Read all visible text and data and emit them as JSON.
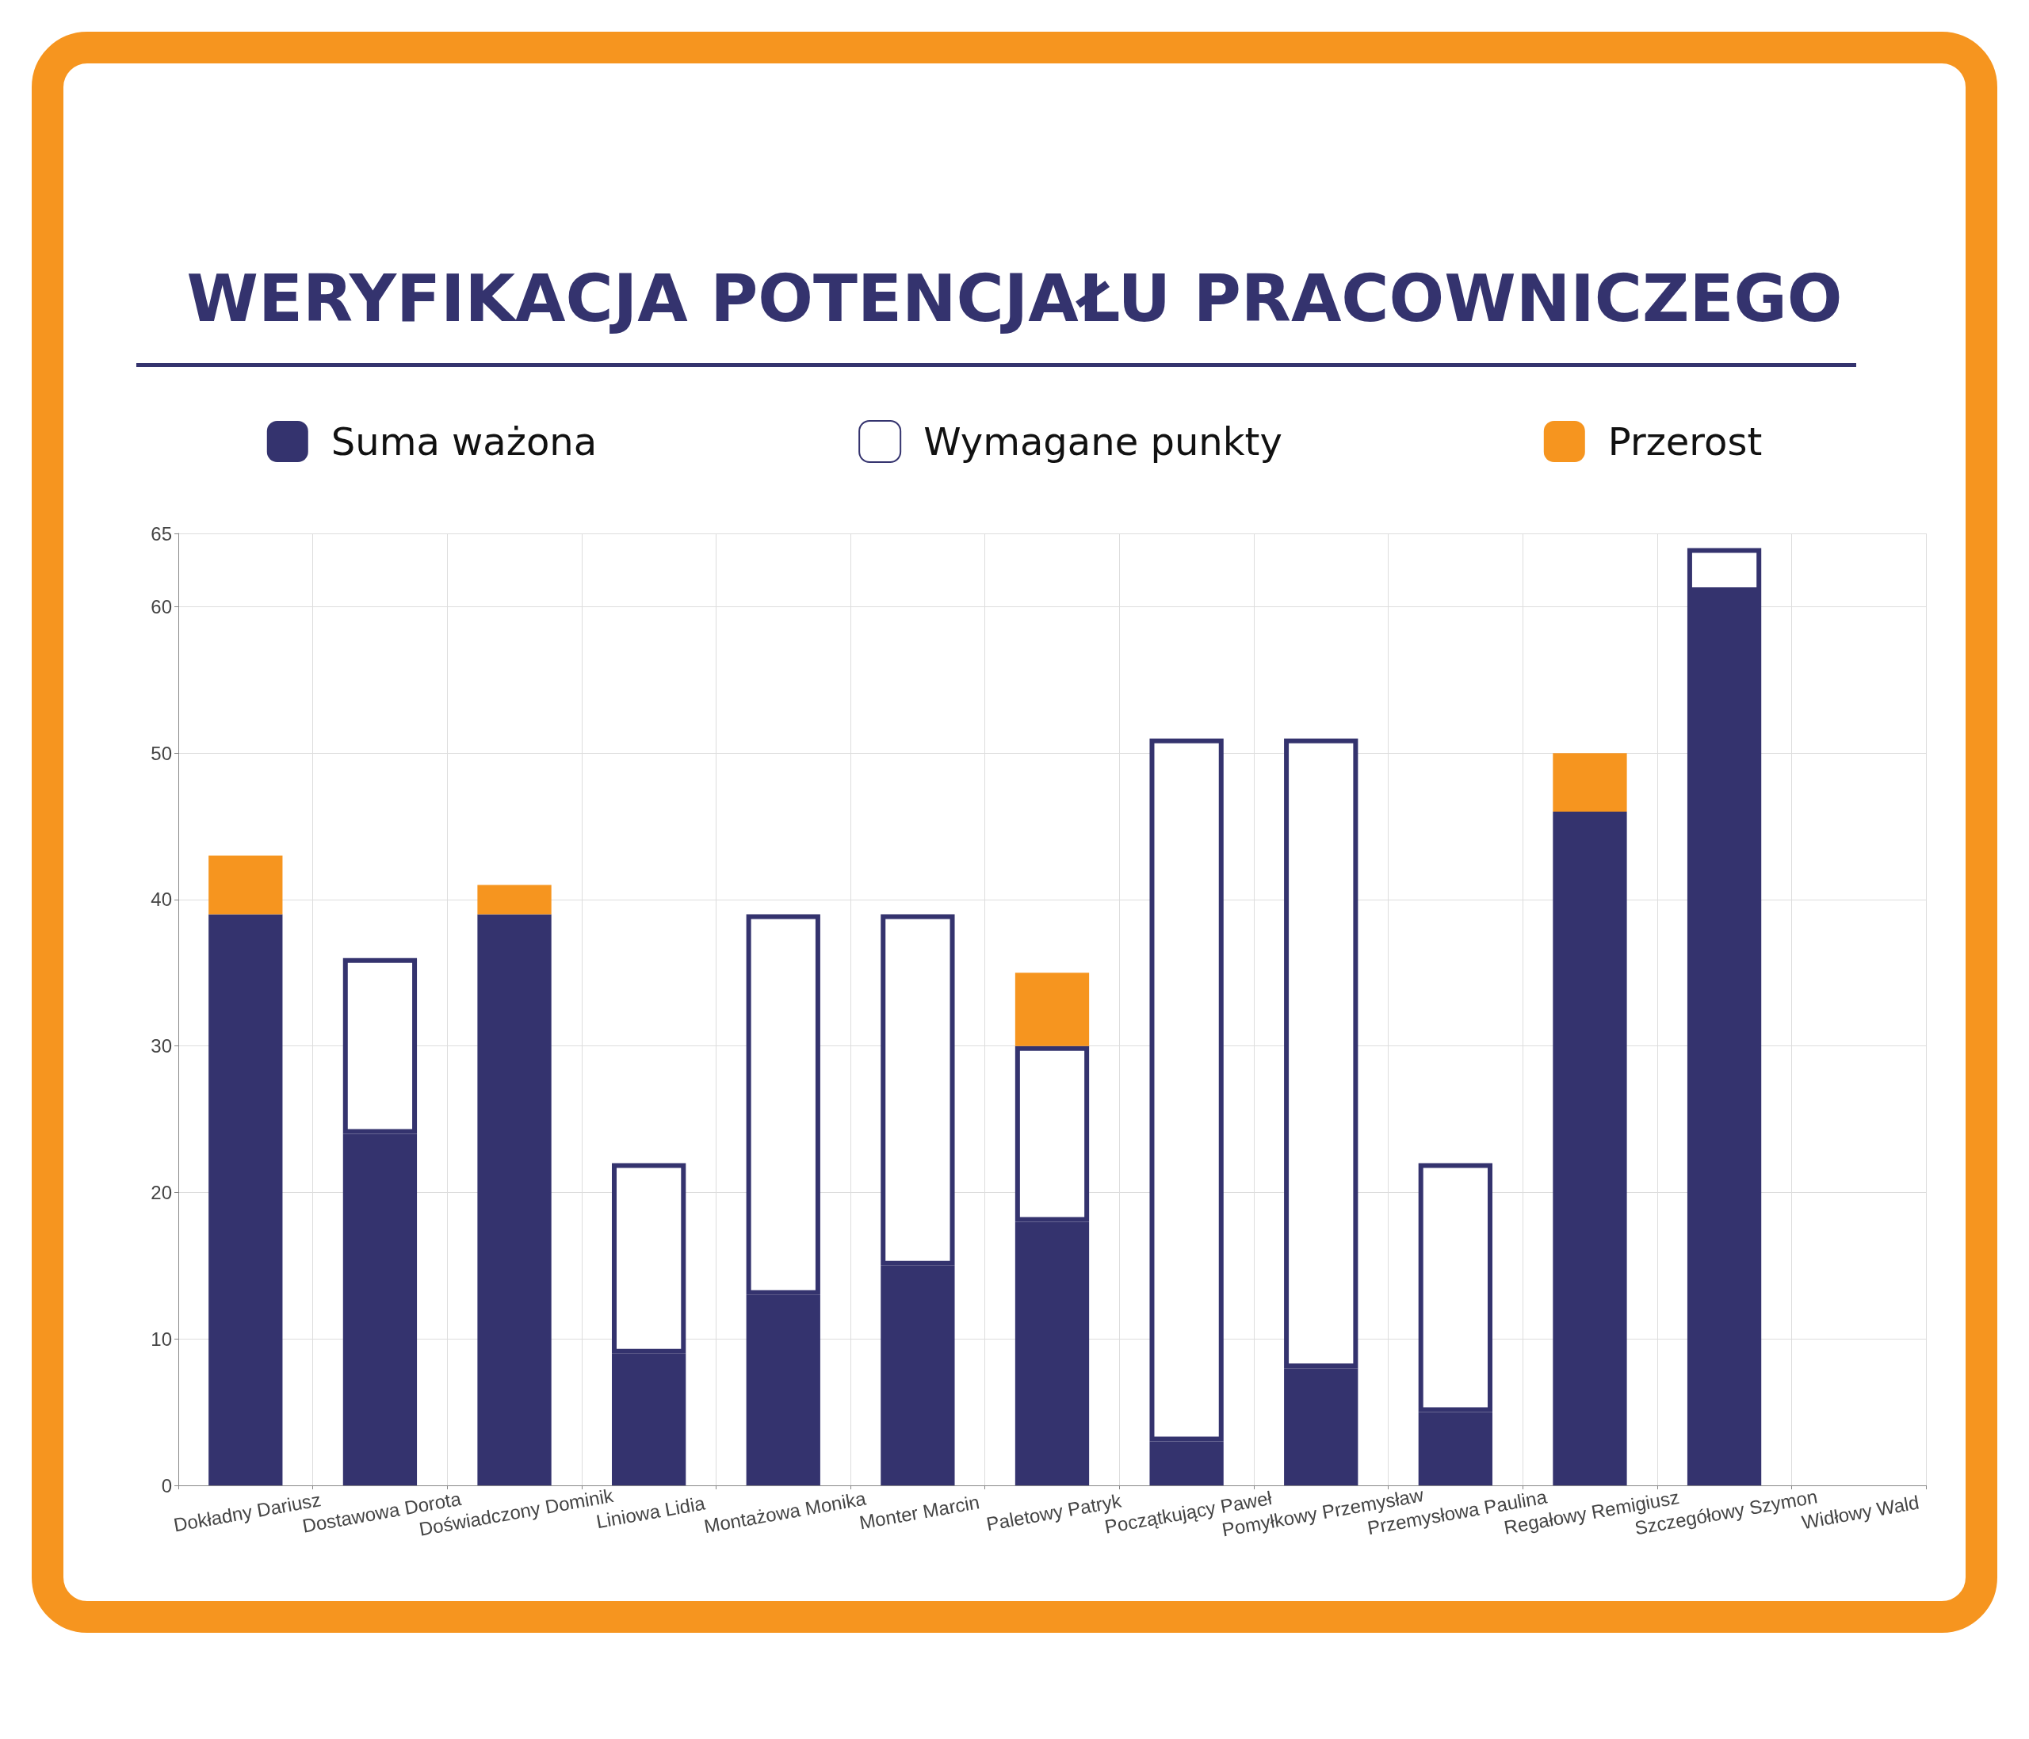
{
  "chart_data": {
    "type": "bar",
    "title": "WERYFIKACJA POTENCJAŁU PRACOWNICZEGO",
    "categories": [
      "Dokładny Dariusz",
      "Dostawowa Dorota",
      "Doświadczony Dominik",
      "Liniowa Lidia",
      "Montażowa Monika",
      "Monter Marcin",
      "Paletowy Patryk",
      "Początkujący Paweł",
      "Pomyłkowy Przemysław",
      "Przemysłowa Paulina",
      "Regałowy Remigiusz",
      "Szczegółowy Szymon",
      "Widłowy Wald"
    ],
    "series": [
      {
        "name": "Suma ważona",
        "color": "#34336e",
        "values": [
          39,
          24,
          39,
          9,
          13,
          15,
          18,
          3,
          8,
          5,
          46,
          61,
          null
        ]
      },
      {
        "name": "Wymagane punkty",
        "color": "#ffffff",
        "values": [
          null,
          12,
          null,
          13,
          26,
          24,
          12,
          48,
          43,
          17,
          null,
          3,
          null
        ]
      },
      {
        "name": "Przerost",
        "color": "#f6951f",
        "values": [
          4,
          null,
          2,
          null,
          null,
          null,
          5,
          null,
          null,
          null,
          4,
          null,
          null
        ]
      }
    ],
    "stacked": true,
    "ylim": [
      0,
      65
    ],
    "yticks": [
      0,
      10,
      20,
      30,
      40,
      50,
      60,
      65
    ],
    "grid": true,
    "legend": "top"
  }
}
